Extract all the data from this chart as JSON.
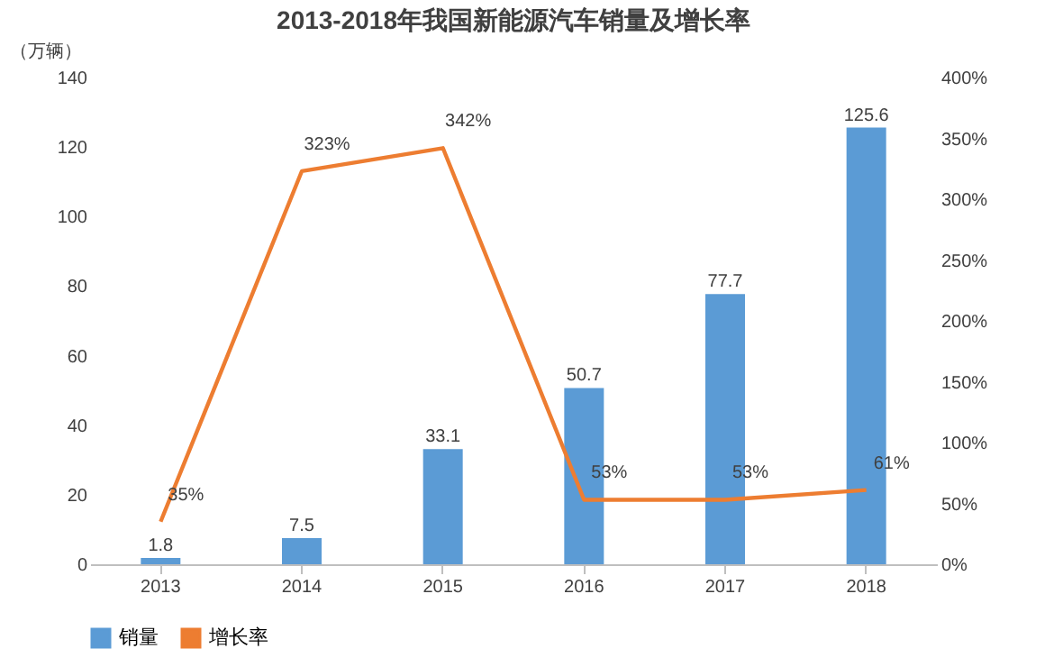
{
  "chart_data": {
    "type": "bar",
    "title": "2013-2018年我国新能源汽车销量及增长率",
    "ylabel": "（万辆）",
    "categories": [
      "2013",
      "2014",
      "2015",
      "2016",
      "2017",
      "2018"
    ],
    "series": [
      {
        "name": "销量",
        "color": "#5b9bd5",
        "values": [
          1.8,
          7.5,
          33.1,
          50.7,
          77.7,
          125.6
        ],
        "value_labels": [
          "1.8",
          "7.5",
          "33.1",
          "50.7",
          "77.7",
          "125.6"
        ]
      },
      {
        "name": "增长率",
        "type": "line",
        "axis": "y2",
        "color": "#ed7d31",
        "values": [
          35,
          323,
          342,
          53,
          53,
          61
        ],
        "value_labels": [
          "35%",
          "323%",
          "342%",
          "53%",
          "53%",
          "61%"
        ]
      }
    ],
    "ylim": [
      0,
      140
    ],
    "yticks": [
      0,
      20,
      40,
      60,
      80,
      100,
      120,
      140
    ],
    "y2lim": [
      0,
      400
    ],
    "y2ticks": [
      {
        "value": 0,
        "label": "0%"
      },
      {
        "value": 50,
        "label": "50%"
      },
      {
        "value": 100,
        "label": "100%"
      },
      {
        "value": 150,
        "label": "150%"
      },
      {
        "value": 200,
        "label": "200%"
      },
      {
        "value": 250,
        "label": "250%"
      },
      {
        "value": 300,
        "label": "300%"
      },
      {
        "value": 350,
        "label": "350%"
      },
      {
        "value": 400,
        "label": "400%"
      }
    ],
    "legend": "bottom",
    "grid": false,
    "marker": "none",
    "line_style": "solid"
  }
}
